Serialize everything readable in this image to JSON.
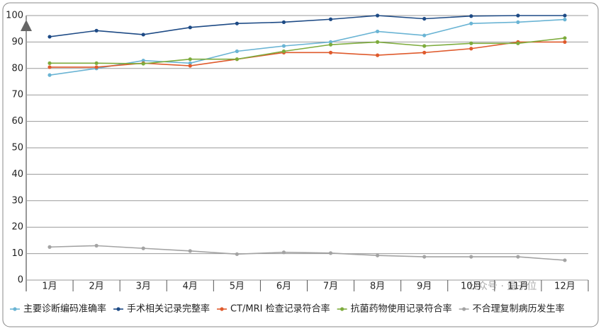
{
  "chart_data": {
    "type": "line",
    "categories": [
      "1月",
      "2月",
      "3月",
      "4月",
      "5月",
      "6月",
      "7月",
      "8月",
      "9月",
      "10月",
      "11月",
      "12月"
    ],
    "series": [
      {
        "name": "主要诊断编码准确率",
        "color": "#6ab4d4",
        "values": [
          77.5,
          80,
          83,
          82,
          86.5,
          88.5,
          90,
          94,
          92.5,
          97,
          97.5,
          98.5
        ]
      },
      {
        "name": "手术相关记录完整率",
        "color": "#1d4a85",
        "values": [
          92,
          94.3,
          92.8,
          95.5,
          97,
          97.5,
          98.6,
          100,
          98.8,
          99.8,
          100,
          100
        ]
      },
      {
        "name": "CT/MRI 检查记录符合率",
        "color": "#df5a2c",
        "values": [
          80.5,
          80.5,
          82,
          81,
          83.5,
          86,
          86,
          85,
          86,
          87.5,
          90,
          90
        ]
      },
      {
        "name": "抗菌药物使用记录符合率",
        "color": "#7dab3c",
        "values": [
          82,
          82,
          81.8,
          83.5,
          83.5,
          86.5,
          89,
          90,
          88.5,
          89.5,
          89.5,
          91.5
        ]
      },
      {
        "name": "不合理复制病历发生率",
        "color": "#a3a3a3",
        "values": [
          12.5,
          13,
          12,
          11,
          9.8,
          10.5,
          10.2,
          9.3,
          8.8,
          8.8,
          8.8,
          7.5
        ]
      }
    ],
    "ylim": [
      0,
      100
    ],
    "yticks": [
      0,
      10,
      20,
      30,
      40,
      50,
      60,
      70,
      80,
      90,
      100
    ],
    "grid": true,
    "legend": "bottom",
    "watermark": "公众号 · 量子位"
  }
}
